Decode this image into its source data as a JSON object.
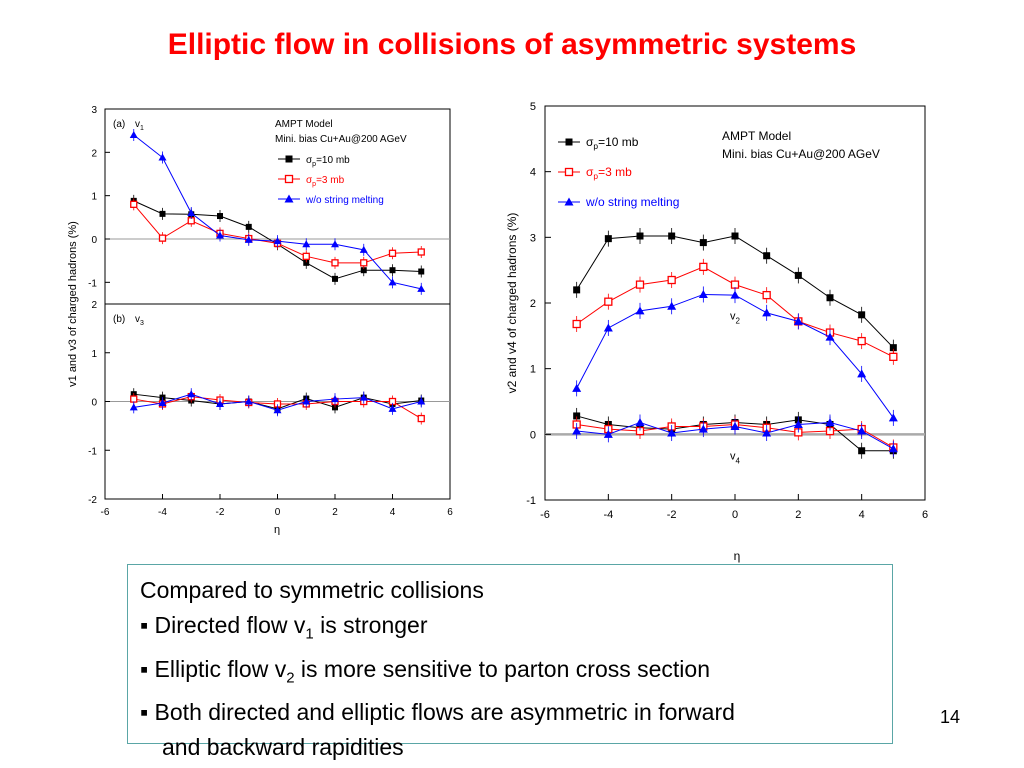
{
  "slide": {
    "title": "Elliptic flow in collisions of asymmetric systems",
    "page_number": "14"
  },
  "note": {
    "heading": "Compared to symmetric collisions",
    "bullet_marker": "▪",
    "bullet1": {
      "pre": "Directed flow v",
      "sub": "1",
      "post": " is stronger"
    },
    "bullet2": {
      "pre": "Elliptic flow v",
      "sub": "2",
      "post": " is more sensitive to parton cross section"
    },
    "bullet3_line1": "Both directed and elliptic flows are asymmetric in forward",
    "bullet3_line2": "and backward rapidities"
  },
  "colors": {
    "black": "#000000",
    "red": "#ff0000",
    "blue": "#0000ff",
    "title": "#ff0000",
    "box_border": "#5aa6a6"
  },
  "chart_data": [
    {
      "type": "line",
      "panel": "left",
      "ylabel": "v1 and v3 of charged hadrons (%)",
      "xlabel": "η",
      "xlim": [
        -6,
        6
      ],
      "x_ticks": [
        "-6",
        "-4",
        "-2",
        "0",
        "2",
        "4",
        "6"
      ],
      "legend_title": [
        "AMPT Model",
        "Mini. bias Cu+Au@200 AGeV"
      ],
      "legend": [
        "σp=10 mb",
        "σp=3 mb",
        "w/o string melting"
      ],
      "subpanels": [
        {
          "label": "(a)",
          "var": "v1",
          "ylim": [
            -1.5,
            3
          ],
          "y_ticks": [
            "3",
            "2",
            "1",
            "0",
            "-1"
          ],
          "x": [
            -5,
            -4,
            -3,
            -2,
            -1,
            0,
            1,
            2,
            3,
            4,
            5
          ],
          "series": [
            {
              "name": "σp=10 mb",
              "color": "#000000",
              "marker": "filled-square",
              "values": [
                0.88,
                0.58,
                0.57,
                0.53,
                0.28,
                -0.12,
                -0.55,
                -0.92,
                -0.72,
                -0.72,
                -0.75
              ]
            },
            {
              "name": "σp=3 mb",
              "color": "#ff0000",
              "marker": "open-square",
              "values": [
                0.8,
                0.02,
                0.42,
                0.13,
                0.01,
                -0.1,
                -0.4,
                -0.55,
                -0.55,
                -0.33,
                -0.3
              ]
            },
            {
              "name": "w/o string melting",
              "color": "#0000ff",
              "marker": "filled-triangle",
              "values": [
                2.4,
                1.88,
                0.6,
                0.08,
                -0.02,
                -0.05,
                -0.12,
                -0.12,
                -0.25,
                -1.0,
                -1.15
              ]
            }
          ]
        },
        {
          "label": "(b)",
          "var": "v3",
          "ylim": [
            -2,
            2
          ],
          "y_ticks": [
            "2",
            "1",
            "0",
            "-1",
            "-2"
          ],
          "x": [
            -5,
            -4,
            -3,
            -2,
            -1,
            0,
            1,
            2,
            3,
            4,
            5
          ],
          "series": [
            {
              "name": "σp=10 mb",
              "color": "#000000",
              "marker": "filled-square",
              "values": [
                0.15,
                0.08,
                0.02,
                -0.05,
                0.0,
                -0.15,
                0.06,
                -0.12,
                0.08,
                -0.05,
                0.02
              ]
            },
            {
              "name": "σp=3 mb",
              "color": "#ff0000",
              "marker": "open-square",
              "values": [
                0.05,
                -0.05,
                0.1,
                0.03,
                -0.02,
                -0.05,
                -0.05,
                0.0,
                0.0,
                0.0,
                -0.35
              ]
            },
            {
              "name": "w/o string melting",
              "color": "#0000ff",
              "marker": "filled-triangle",
              "values": [
                -0.12,
                -0.03,
                0.15,
                -0.05,
                0.0,
                -0.18,
                0.0,
                0.05,
                0.08,
                -0.15,
                0.0
              ]
            }
          ]
        }
      ]
    },
    {
      "type": "line",
      "panel": "right",
      "ylabel": "v2 and v4 of charged hadrons (%)",
      "xlabel": "η",
      "xlim": [
        -6,
        6
      ],
      "ylim": [
        -1,
        5
      ],
      "x_ticks": [
        "-6",
        "-4",
        "-2",
        "0",
        "2",
        "4",
        "6"
      ],
      "y_ticks": [
        "5",
        "4",
        "3",
        "2",
        "1",
        "0",
        "-1"
      ],
      "legend_title": [
        "AMPT Model",
        "Mini. bias Cu+Au@200 AGeV"
      ],
      "legend": [
        "σp=10 mb",
        "σp=3 mb",
        "w/o string melting"
      ],
      "annotations": [
        "v2",
        "v4"
      ],
      "x": [
        -5,
        -4,
        -3,
        -2,
        -1,
        0,
        1,
        2,
        3,
        4,
        5
      ],
      "series": [
        {
          "name": "σp=10 mb",
          "group": "v2",
          "color": "#000000",
          "marker": "filled-square",
          "values": [
            2.2,
            2.98,
            3.02,
            3.02,
            2.92,
            3.02,
            2.72,
            2.42,
            2.08,
            1.82,
            1.32
          ]
        },
        {
          "name": "σp=3 mb",
          "group": "v2",
          "color": "#ff0000",
          "marker": "open-square",
          "values": [
            1.68,
            2.02,
            2.28,
            2.35,
            2.55,
            2.28,
            2.12,
            1.72,
            1.55,
            1.42,
            1.18
          ]
        },
        {
          "name": "w/o string melting",
          "group": "v2",
          "color": "#0000ff",
          "marker": "filled-triangle",
          "values": [
            0.7,
            1.62,
            1.88,
            1.95,
            2.13,
            2.12,
            1.85,
            1.72,
            1.48,
            0.92,
            0.25
          ]
        },
        {
          "name": "σp=10 mb",
          "group": "v4",
          "color": "#000000",
          "marker": "filled-square",
          "values": [
            0.28,
            0.15,
            0.1,
            0.08,
            0.15,
            0.18,
            0.15,
            0.22,
            0.15,
            -0.25,
            -0.25
          ]
        },
        {
          "name": "σp=3 mb",
          "group": "v4",
          "color": "#ff0000",
          "marker": "open-square",
          "values": [
            0.15,
            0.08,
            0.05,
            0.12,
            0.12,
            0.15,
            0.1,
            0.03,
            0.05,
            0.08,
            -0.2
          ]
        },
        {
          "name": "w/o string melting",
          "group": "v4",
          "color": "#0000ff",
          "marker": "filled-triangle",
          "values": [
            0.05,
            0.0,
            0.18,
            0.02,
            0.08,
            0.12,
            0.02,
            0.15,
            0.18,
            0.05,
            -0.22
          ]
        }
      ]
    }
  ]
}
